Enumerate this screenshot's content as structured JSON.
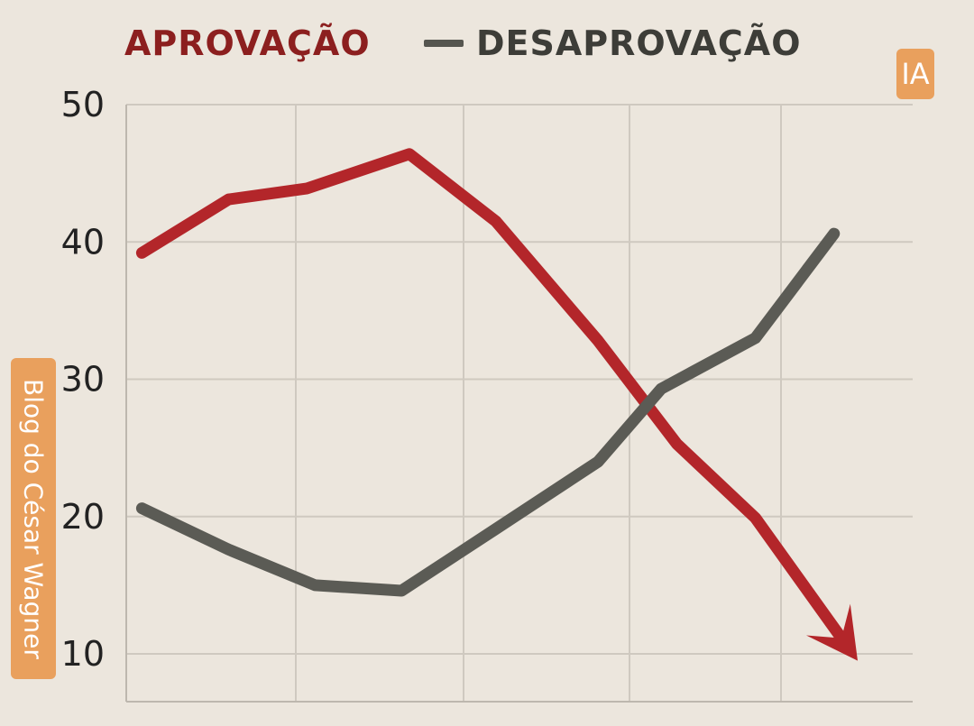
{
  "legend": {
    "approval_label": "APROVAÇÃO",
    "disapproval_label": "DESAPROVAÇÃO"
  },
  "badges": {
    "ai_label": "IA",
    "blog_label": "Blog do César Wagner"
  },
  "colors": {
    "background": "#ece6dd",
    "approval": "#b3262a",
    "disapproval": "#5b5b55",
    "badge": "#e9a05d"
  },
  "chart_data": {
    "type": "line",
    "title": "",
    "xlabel": "",
    "ylabel": "",
    "ylim": [
      10,
      50
    ],
    "yticks": [
      50,
      40,
      30,
      20,
      10
    ],
    "grid": true,
    "legend_position": "top",
    "series": [
      {
        "name": "APROVAÇÃO",
        "color": "#b3262a",
        "arrow_end": true,
        "points": [
          {
            "x": 0.1,
            "y": 39.2
          },
          {
            "x": 0.65,
            "y": 43.1
          },
          {
            "x": 1.15,
            "y": 43.9
          },
          {
            "x": 1.8,
            "y": 46.4
          },
          {
            "x": 2.35,
            "y": 41.5
          },
          {
            "x": 3.0,
            "y": 32.8
          },
          {
            "x": 3.5,
            "y": 25.3
          },
          {
            "x": 4.0,
            "y": 19.9
          },
          {
            "x": 4.65,
            "y": 9.5
          }
        ]
      },
      {
        "name": "DESAPROVAÇÃO",
        "color": "#5b5b55",
        "arrow_end": false,
        "points": [
          {
            "x": 0.1,
            "y": 20.6
          },
          {
            "x": 0.65,
            "y": 17.6
          },
          {
            "x": 1.2,
            "y": 15.0
          },
          {
            "x": 1.75,
            "y": 14.6
          },
          {
            "x": 2.35,
            "y": 19.1
          },
          {
            "x": 3.0,
            "y": 24.0
          },
          {
            "x": 3.4,
            "y": 29.3
          },
          {
            "x": 4.0,
            "y": 33.0
          },
          {
            "x": 4.5,
            "y": 40.6
          }
        ]
      }
    ]
  }
}
